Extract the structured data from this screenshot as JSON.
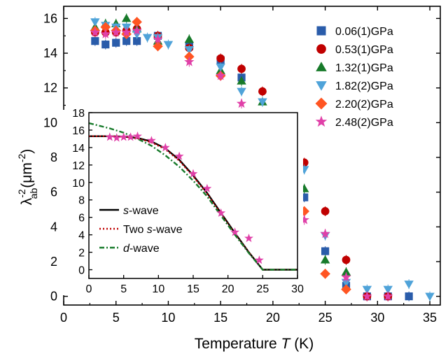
{
  "chart_data": {
    "type": "scatter",
    "main": {
      "xlabel": "Temperature T (K)",
      "xlabel_prefix": "Temperature ",
      "xlabel_var": "T",
      "xlabel_suffix": " (K)",
      "ylabel": "λab^-2 (μm^-2)",
      "ylabel_lambda": "λ",
      "ylabel_sup": "-2",
      "ylabel_sub": "ab",
      "ylabel_unit_open": "(μm",
      "ylabel_unit_sup": "-2",
      "ylabel_unit_close": ")",
      "xlim": [
        0,
        36
      ],
      "ylim": [
        -0.5,
        16.7
      ],
      "xticks": [
        0,
        5,
        10,
        15,
        20,
        25,
        30,
        35
      ],
      "yticks": [
        0,
        2,
        4,
        6,
        8,
        10,
        12,
        14,
        16
      ],
      "legend_position": "top-right",
      "series": [
        {
          "name": "0.06(1)GPa",
          "color": "#2a5caa",
          "marker": "square",
          "x": [
            3,
            4,
            5,
            6,
            7,
            9,
            12,
            15,
            17,
            19,
            21,
            23,
            25,
            27,
            29,
            31,
            33
          ],
          "y": [
            14.7,
            14.5,
            14.6,
            14.7,
            14.7,
            15.0,
            14.4,
            13.6,
            12.6,
            10.0,
            7.9,
            5.7,
            2.6,
            0.6,
            0.0,
            0.0,
            0.0
          ]
        },
        {
          "name": "0.53(1)GPa",
          "color": "#c00000",
          "marker": "circle",
          "x": [
            3,
            4,
            5,
            6,
            7,
            9,
            12,
            15,
            17,
            19,
            21,
            23,
            25,
            27,
            29,
            31
          ],
          "y": [
            15.2,
            15.2,
            15.2,
            15.3,
            15.4,
            15.0,
            14.3,
            13.7,
            13.1,
            11.8,
            9.8,
            7.7,
            4.9,
            2.1,
            0.0,
            0.0
          ]
        },
        {
          "name": "1.32(1)GPa",
          "color": "#177a2a",
          "marker": "triangle-up",
          "x": [
            3,
            4,
            5,
            6,
            7,
            9,
            12,
            15,
            17,
            19,
            21,
            23,
            25,
            27
          ],
          "y": [
            15.5,
            15.7,
            15.7,
            16.0,
            15.4,
            14.7,
            14.8,
            13.0,
            12.4,
            11.2,
            8.8,
            6.2,
            2.1,
            1.4
          ]
        },
        {
          "name": "1.82(2)GPa",
          "color": "#4fa3d9",
          "marker": "triangle-down",
          "x": [
            3,
            4,
            5,
            6,
            7,
            8,
            9,
            10,
            12,
            15,
            17,
            19,
            21,
            23,
            25,
            27,
            29,
            31,
            33,
            35
          ],
          "y": [
            15.8,
            15.6,
            15.5,
            15.5,
            15.1,
            14.9,
            14.9,
            14.5,
            14.2,
            13.2,
            11.8,
            11.2,
            9.7,
            7.3,
            3.5,
            0.8,
            0.4,
            0.4,
            0.7,
            0.0
          ]
        },
        {
          "name": "2.20(2)GPa",
          "color": "#ff5522",
          "marker": "diamond",
          "x": [
            3,
            4,
            5,
            6,
            7,
            9,
            12,
            15,
            17,
            19,
            21,
            23,
            25,
            27
          ],
          "y": [
            15.3,
            15.5,
            15.3,
            15.1,
            15.8,
            14.4,
            13.8,
            12.7,
            10.1,
            8.0,
            5.4,
            4.9,
            1.3,
            0.4
          ]
        },
        {
          "name": "2.48(2)GPa",
          "color": "#e040a8",
          "marker": "star",
          "x": [
            3,
            4,
            5,
            6,
            7,
            9,
            12,
            15,
            17,
            19,
            21,
            23,
            25,
            27,
            29,
            31
          ],
          "y": [
            15.2,
            15.1,
            15.2,
            15.2,
            15.3,
            14.8,
            13.5,
            12.7,
            11.1,
            9.9,
            6.6,
            4.4,
            3.6,
            1.1,
            0.0,
            0.0
          ]
        }
      ]
    },
    "inset": {
      "xlim": [
        0,
        30
      ],
      "ylim": [
        -1,
        18
      ],
      "xticks": [
        0,
        5,
        10,
        15,
        20,
        25,
        30
      ],
      "yticks": [
        0,
        2,
        4,
        6,
        8,
        10,
        12,
        14,
        16,
        18
      ],
      "legend_position": "bottom-left",
      "points": {
        "color": "#e040a8",
        "marker": "star",
        "x": [
          3,
          4,
          5,
          6,
          7,
          9,
          11,
          13,
          15,
          17,
          19,
          21,
          23,
          24.5
        ],
        "y": [
          15.2,
          15.1,
          15.2,
          15.2,
          15.3,
          14.8,
          14.0,
          13.0,
          11.0,
          9.3,
          6.5,
          4.3,
          3.6,
          1.1
        ]
      },
      "curves": [
        {
          "name_prefix": "",
          "name_em": "s",
          "name_suffix": "-wave",
          "color": "#000000",
          "dash": "solid",
          "x": [
            0,
            3,
            5,
            7,
            9,
            11,
            13,
            15,
            17,
            19,
            21,
            23,
            25,
            30
          ],
          "y": [
            15.3,
            15.3,
            15.25,
            15.1,
            14.7,
            13.9,
            12.6,
            10.8,
            8.8,
            6.5,
            4.2,
            2.0,
            0.0,
            0.0
          ]
        },
        {
          "name_prefix": "Two ",
          "name_em": "s",
          "name_suffix": "-wave",
          "color": "#c00000",
          "dash": "dot",
          "x": [
            0,
            3,
            5,
            7,
            9,
            11,
            13,
            15,
            17,
            19,
            21,
            23,
            25,
            30
          ],
          "y": [
            15.3,
            15.3,
            15.25,
            15.05,
            14.6,
            13.8,
            12.5,
            10.7,
            8.7,
            6.4,
            4.1,
            2.0,
            0.0,
            0.0
          ]
        },
        {
          "name_prefix": "",
          "name_em": "d",
          "name_suffix": "-wave",
          "color": "#177a2a",
          "dash": "dashdot",
          "x": [
            0,
            3,
            5,
            7,
            9,
            11,
            13,
            15,
            17,
            19,
            21,
            23,
            25,
            30
          ],
          "y": [
            16.8,
            16.2,
            15.7,
            15.0,
            14.2,
            13.1,
            11.8,
            10.2,
            8.4,
            6.2,
            4.0,
            1.9,
            0.0,
            0.0
          ]
        }
      ]
    }
  }
}
